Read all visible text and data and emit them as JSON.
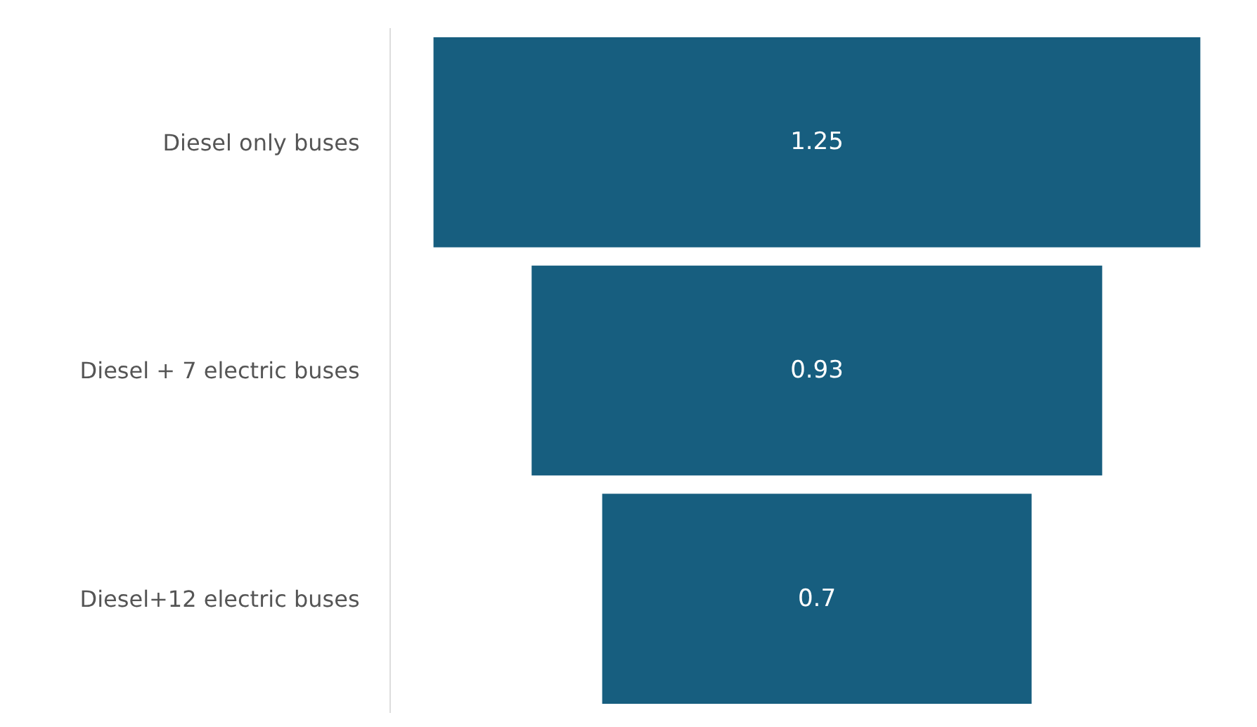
{
  "chart_data": {
    "type": "other",
    "categories": [
      "Diesel only buses",
      "Diesel + 7 electric buses",
      "Diesel+12 electric buses"
    ],
    "values": [
      1.25,
      0.93,
      0.7
    ],
    "color": "#175e7f",
    "data_labels": true
  }
}
